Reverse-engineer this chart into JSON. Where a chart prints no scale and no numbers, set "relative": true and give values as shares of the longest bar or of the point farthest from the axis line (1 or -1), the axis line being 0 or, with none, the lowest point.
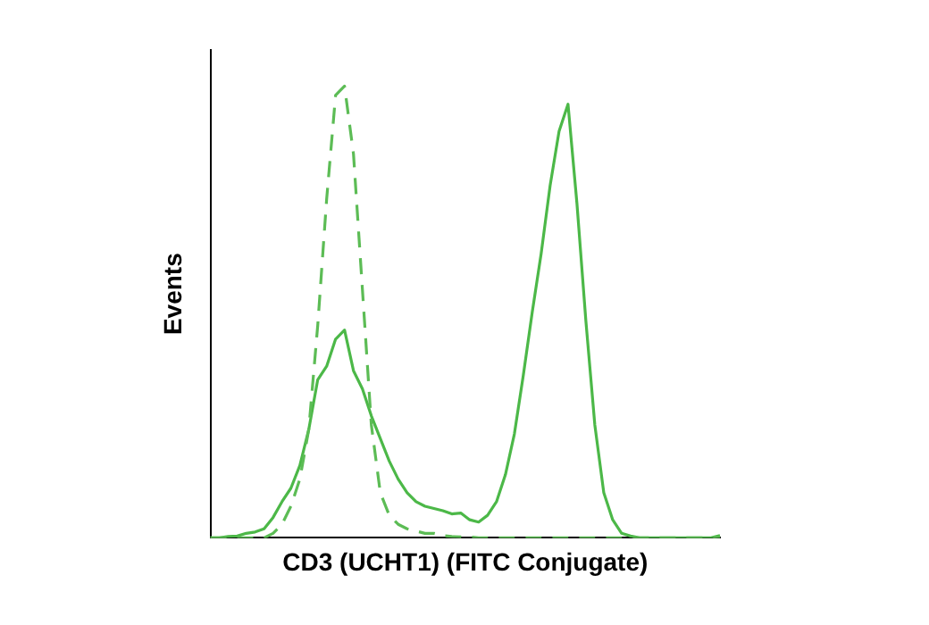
{
  "chart_data": {
    "type": "line",
    "relative": true,
    "xlabel": "CD3 (UCHT1) (FITC Conjugate)",
    "ylabel": "Events",
    "marker": "none",
    "grid": false,
    "legend": false,
    "categories": [
      null,
      null,
      null,
      null,
      null,
      null,
      null,
      null,
      null,
      null,
      null,
      null,
      null,
      null,
      null,
      null,
      null,
      null,
      null,
      null,
      null,
      null,
      null,
      null,
      null,
      null,
      null,
      null,
      null,
      null,
      null,
      null,
      null,
      null,
      null,
      null,
      null,
      null,
      null,
      null,
      null,
      null,
      null,
      null,
      null,
      null,
      null,
      null,
      null,
      null,
      null,
      null,
      null,
      null,
      null,
      null,
      null,
      null
    ],
    "series": [
      {
        "color": "#4cb848",
        "line_style": "solid",
        "values": [
          0,
          0,
          0.003,
          0.004,
          0.01,
          0.013,
          0.02,
          0.045,
          0.08,
          0.11,
          0.16,
          0.24,
          0.35,
          0.38,
          0.44,
          0.46,
          0.37,
          0.33,
          0.27,
          0.22,
          0.17,
          0.13,
          0.1,
          0.08,
          0.07,
          0.065,
          0.06,
          0.053,
          0.055,
          0.04,
          0.035,
          0.05,
          0.08,
          0.14,
          0.23,
          0.36,
          0.5,
          0.63,
          0.78,
          0.9,
          0.96,
          0.74,
          0.48,
          0.25,
          0.1,
          0.04,
          0.01,
          0.004,
          0,
          0,
          0,
          0,
          0,
          0,
          0,
          0,
          0,
          0.005
        ]
      },
      {
        "color": "#5cbc55",
        "line_style": "dashed",
        "values": [
          0,
          0,
          0,
          0,
          0,
          0,
          0,
          0.01,
          0.03,
          0.07,
          0.13,
          0.24,
          0.47,
          0.75,
          0.98,
          1,
          0.85,
          0.55,
          0.25,
          0.1,
          0.05,
          0.03,
          0.02,
          0.015,
          0.01,
          0.01,
          0.005,
          0.003,
          0.002,
          0.002,
          0,
          0,
          0,
          0,
          0,
          0,
          0,
          0,
          0,
          0,
          0,
          0,
          0,
          0,
          0,
          0,
          0,
          0,
          0,
          0,
          0,
          0,
          0,
          0,
          0,
          0,
          0,
          0
        ]
      }
    ]
  }
}
